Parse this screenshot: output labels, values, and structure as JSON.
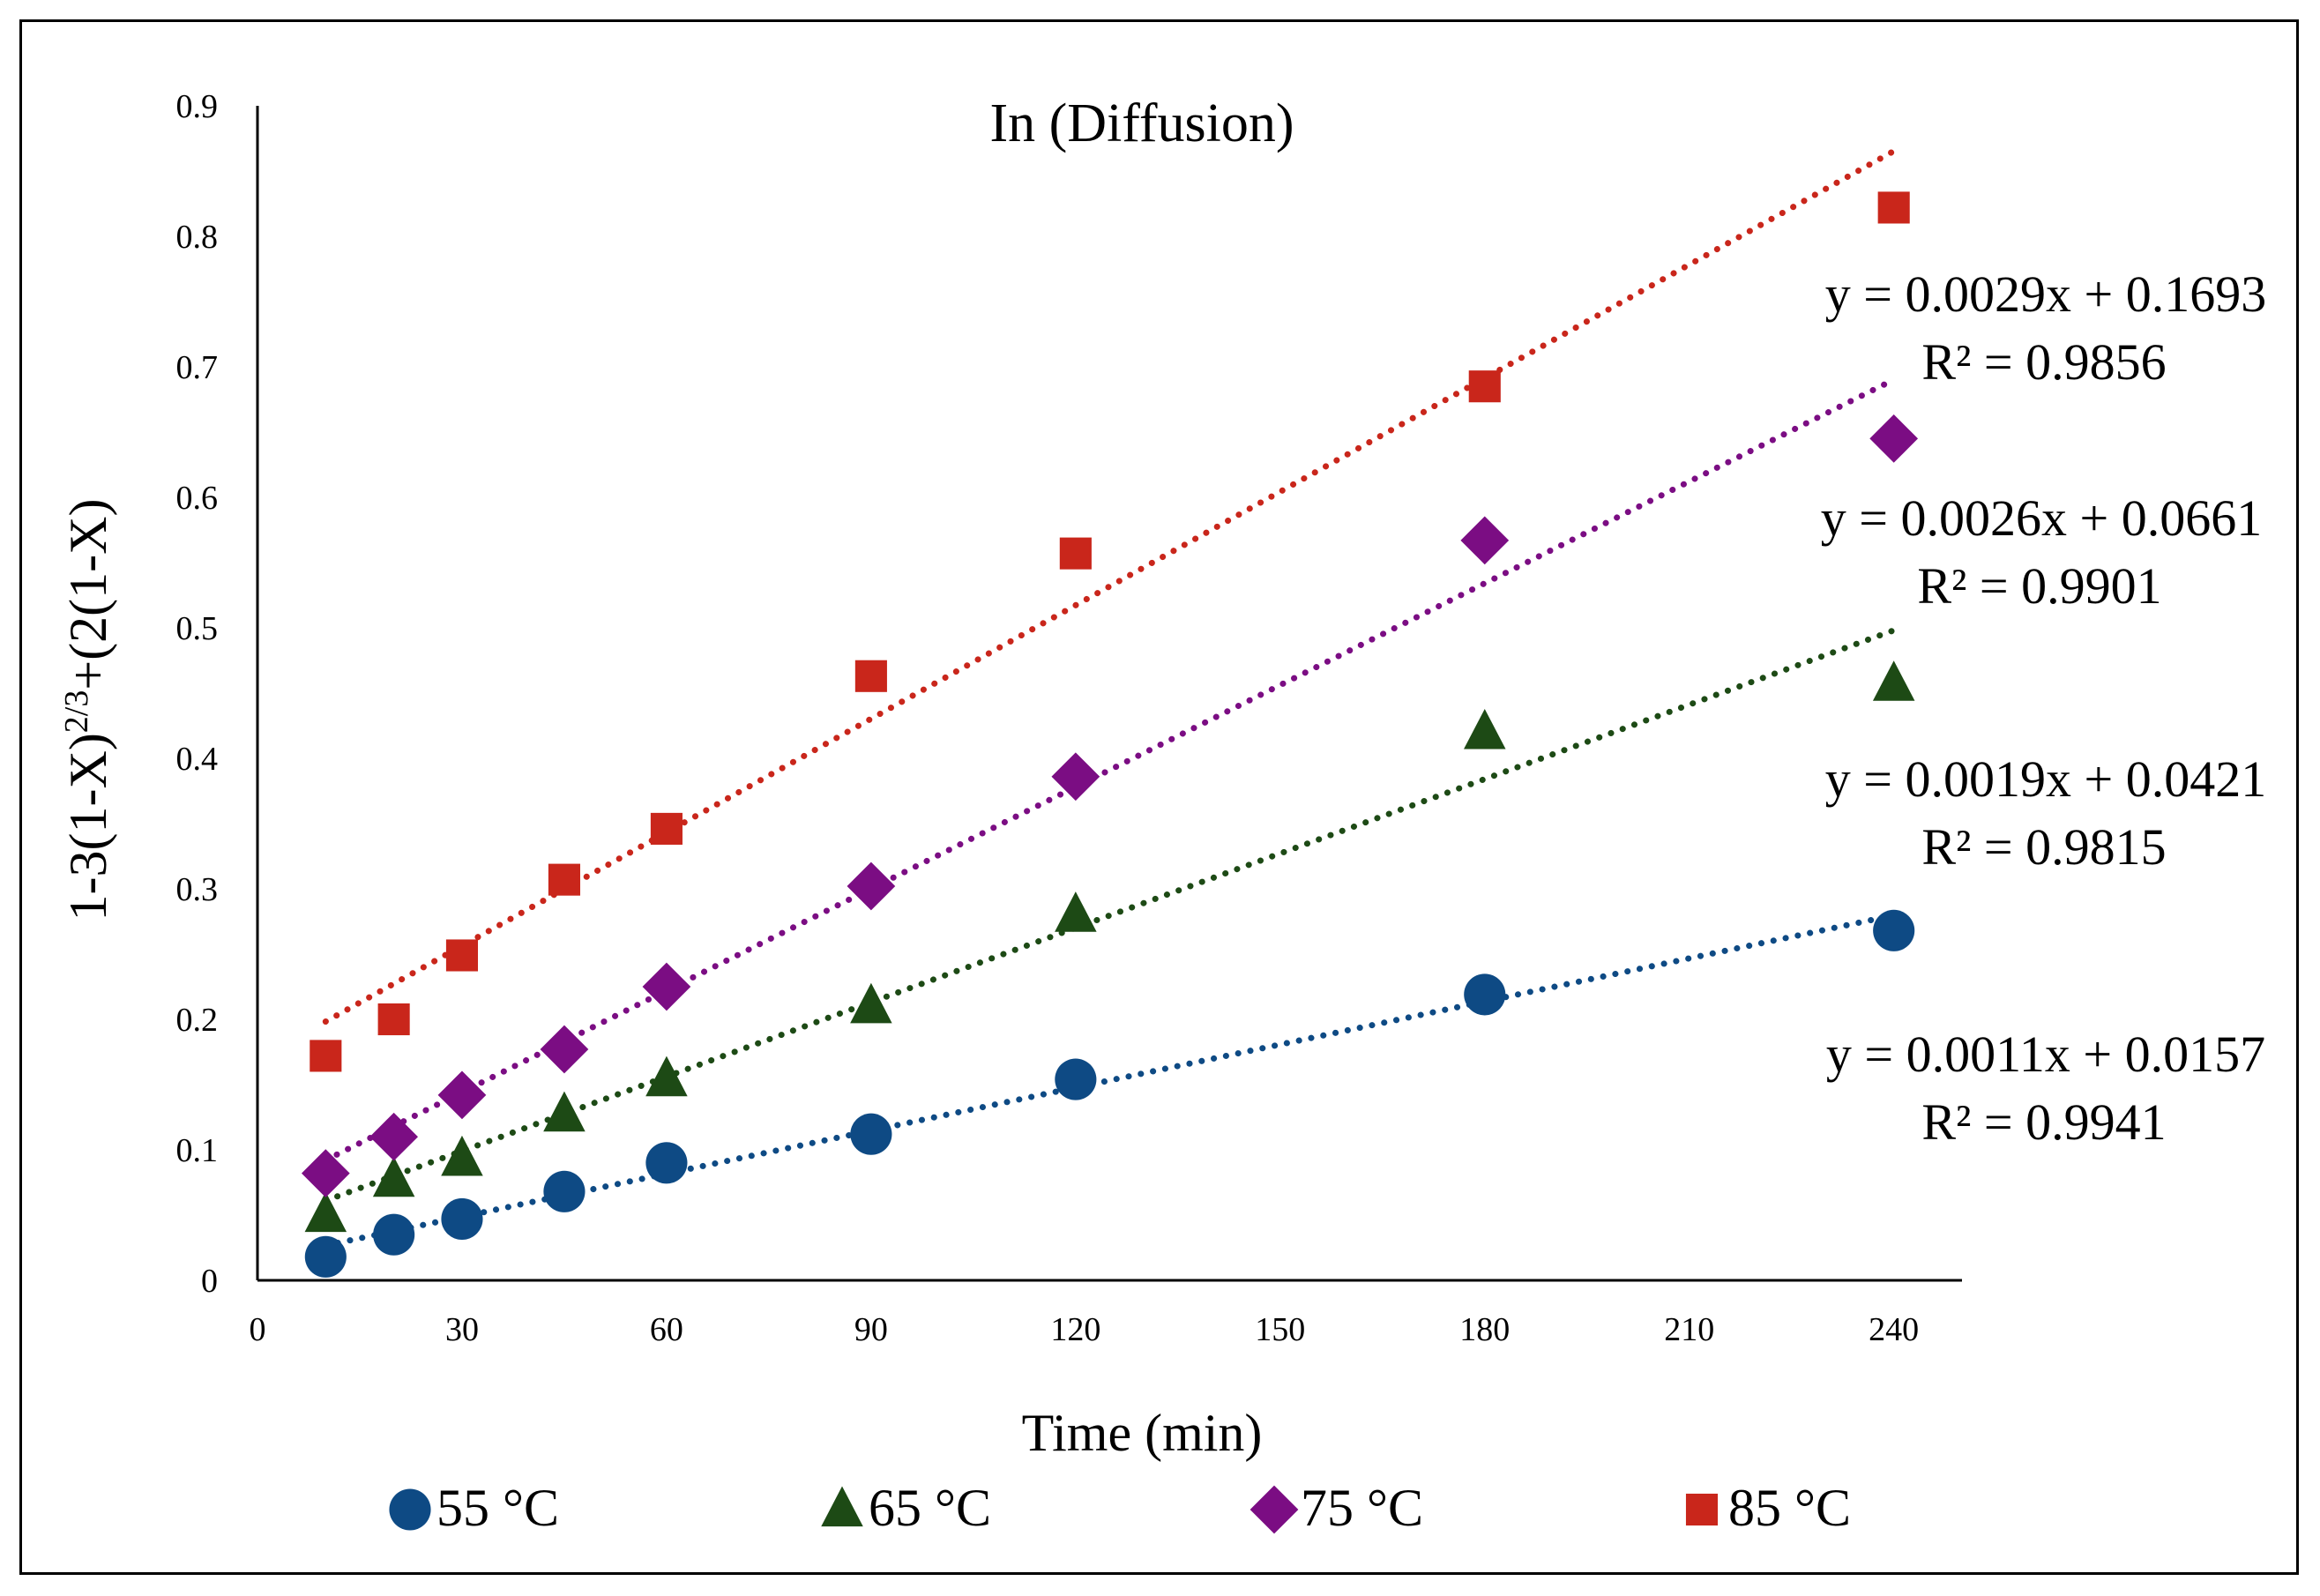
{
  "chart_data": {
    "type": "scatter",
    "title": "In (Diffusion)",
    "xlabel": "Time (min)",
    "ylabel_parts": [
      "1-3(1-X)",
      "2/3",
      "+(2(1-X)"
    ],
    "xlim": [
      0,
      250
    ],
    "ylim": [
      0,
      0.9
    ],
    "x_ticks": [
      0,
      30,
      60,
      90,
      120,
      150,
      180,
      210,
      240
    ],
    "x_tick_labels": [
      "0",
      "30",
      "60",
      "90",
      "120",
      "150",
      "180",
      "210",
      "240"
    ],
    "y_ticks": [
      0,
      0.1,
      0.2,
      0.3,
      0.4,
      0.5,
      0.6,
      0.7,
      0.8,
      0.9
    ],
    "y_tick_labels": [
      "0",
      "0.1",
      "0.2",
      "0.3",
      "0.4",
      "0.5",
      "0.6",
      "0.7",
      "0.8",
      "0.9"
    ],
    "grid": false,
    "legend_position": "bottom",
    "x": [
      10,
      20,
      30,
      45,
      60,
      90,
      120,
      180,
      240
    ],
    "series": [
      {
        "name": "55 °C",
        "color": "#0E4A84",
        "marker": "circle",
        "values": [
          0.018,
          0.035,
          0.047,
          0.068,
          0.09,
          0.112,
          0.154,
          0.219,
          0.268
        ],
        "trendline": {
          "slope": 0.0011,
          "intercept": 0.0157
        },
        "equation": "y = 0.0011x + 0.0157",
        "r2": "R² = 0.9941"
      },
      {
        "name": "65 °C",
        "color": "#1D4A15",
        "marker": "triangle",
        "values": [
          0.05,
          0.077,
          0.093,
          0.127,
          0.154,
          0.21,
          0.28,
          0.42,
          0.457
        ],
        "trendline": {
          "slope": 0.0019,
          "intercept": 0.0421
        },
        "equation": "y = 0.0019x + 0.0421",
        "r2": "R² = 0.9815"
      },
      {
        "name": "75 °C",
        "color": "#7B0D83",
        "marker": "diamond",
        "values": [
          0.082,
          0.11,
          0.142,
          0.177,
          0.225,
          0.302,
          0.386,
          0.567,
          0.645
        ],
        "trendline": {
          "slope": 0.0026,
          "intercept": 0.0661
        },
        "equation": "y = 0.0026x + 0.0661",
        "r2": "R² = 0.9901"
      },
      {
        "name": "85 °C",
        "color": "#C9261B",
        "marker": "square",
        "values": [
          0.172,
          0.2,
          0.249,
          0.307,
          0.346,
          0.463,
          0.557,
          0.685,
          0.822
        ],
        "trendline": {
          "slope": 0.0029,
          "intercept": 0.1693
        },
        "equation": "y = 0.0029x + 0.1693",
        "r2": "R² = 0.9856"
      }
    ]
  }
}
